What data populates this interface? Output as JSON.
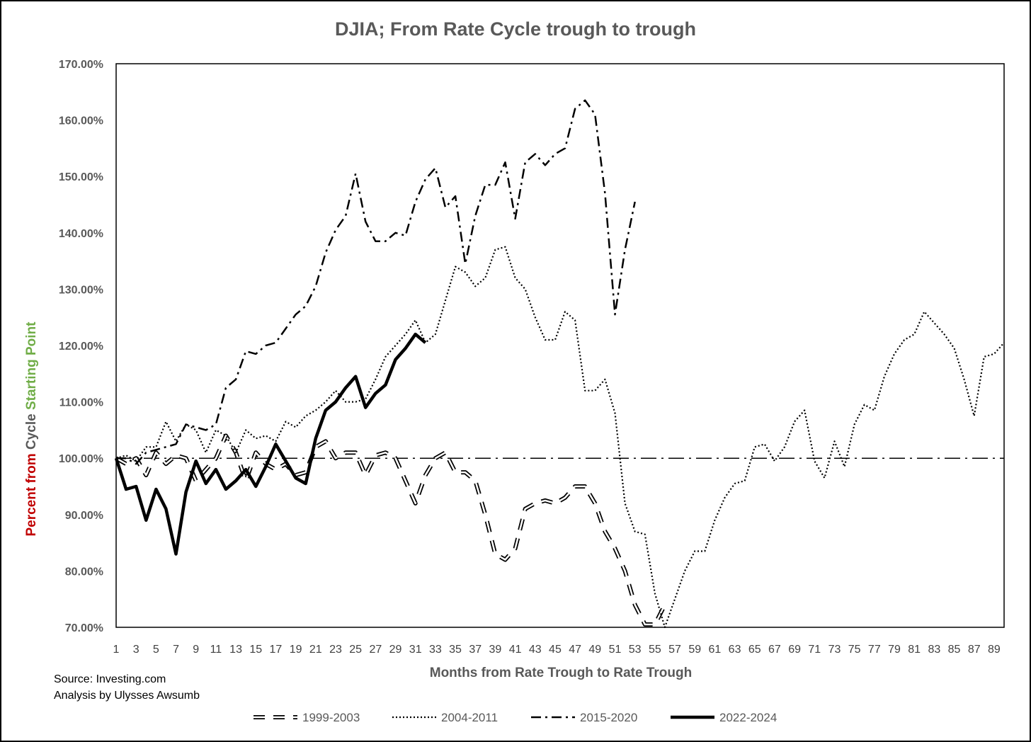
{
  "chart_data": {
    "type": "line",
    "title": "DJIA; From Rate Cycle trough to trough",
    "xlabel": "Months from Rate Trough to Rate Trough",
    "ylabel_parts": [
      {
        "text": "Percent from ",
        "color": "#C00000"
      },
      {
        "text": "Cycle ",
        "color": "#595959"
      },
      {
        "text": "Starting Point",
        "color": "#70AD47"
      }
    ],
    "ylim": [
      70,
      170
    ],
    "yticks": [
      70,
      80,
      90,
      100,
      110,
      120,
      130,
      140,
      150,
      160,
      170
    ],
    "ytick_labels": [
      "70.00%",
      "80.00%",
      "90.00%",
      "100.00%",
      "110.00%",
      "120.00%",
      "130.00%",
      "140.00%",
      "150.00%",
      "160.00%",
      "170.00%"
    ],
    "xlim": [
      1,
      90
    ],
    "xtick_labels": [
      "1",
      "3",
      "5",
      "7",
      "9",
      "11",
      "13",
      "15",
      "17",
      "19",
      "21",
      "23",
      "25",
      "27",
      "29",
      "31",
      "33",
      "35",
      "37",
      "39",
      "41",
      "43",
      "45",
      "47",
      "49",
      "51",
      "53",
      "55",
      "57",
      "59",
      "61",
      "63",
      "65",
      "67",
      "69",
      "71",
      "73",
      "75",
      "77",
      "79",
      "81",
      "83",
      "85",
      "87",
      "89"
    ],
    "reference_line": {
      "y": 100,
      "style": "dash-dot"
    },
    "legend_position": "bottom",
    "series": [
      {
        "name": "1999-2003",
        "style": "outlined-dash",
        "values": [
          100,
          99,
          100,
          97,
          101,
          99,
          100.5,
          100,
          96,
          98,
          100,
          104,
          101,
          96,
          101,
          99,
          98,
          99,
          97,
          97.5,
          102,
          103,
          100,
          101,
          101,
          97,
          100.5,
          101,
          100,
          96,
          92,
          97,
          100,
          101,
          97.5,
          97.5,
          96,
          90,
          83,
          82,
          84,
          91,
          92,
          92.5,
          92,
          93,
          95,
          95,
          92,
          87,
          84,
          80,
          74,
          70.5,
          70.5,
          74
        ]
      },
      {
        "name": "2004-2011",
        "style": "dotted",
        "values": [
          100,
          100.5,
          99.5,
          102,
          102,
          106.5,
          103,
          106,
          105,
          101,
          105,
          104,
          101,
          105,
          103.5,
          104,
          103,
          106.5,
          105.5,
          107.5,
          108.5,
          110,
          112,
          110,
          110,
          110.5,
          114,
          118,
          120,
          122,
          124.5,
          120.5,
          122,
          128,
          134,
          133,
          130.5,
          132,
          137,
          137.5,
          132,
          130,
          125,
          121,
          121,
          126,
          124.5,
          112,
          112,
          114,
          108,
          92,
          87,
          86.5,
          76,
          70,
          75,
          80,
          83.5,
          83.5,
          89,
          93,
          95.5,
          96,
          102,
          102.5,
          99.5,
          102,
          106.5,
          108.5,
          99.5,
          96.5,
          103,
          98.5,
          106,
          109.5,
          108.5,
          114.5,
          118.5,
          121,
          122,
          126,
          124,
          122,
          119.5,
          114,
          107.5,
          118,
          118.5,
          120.5
        ]
      },
      {
        "name": "2015-2020",
        "style": "dash-dot",
        "values": [
          100,
          100,
          99,
          101,
          101.5,
          102,
          102.5,
          106,
          105.5,
          105,
          106,
          112.5,
          114,
          119,
          118.5,
          120,
          120.5,
          123,
          125.5,
          127,
          130.5,
          136.5,
          140.5,
          143,
          150.5,
          142,
          138.5,
          138.5,
          140,
          139.5,
          145.5,
          149.5,
          151.5,
          144.5,
          146.5,
          134.5,
          143,
          148.5,
          148.5,
          152.5,
          142.5,
          152.5,
          154,
          152,
          154,
          155,
          162,
          163.5,
          161,
          147,
          125.5,
          137,
          145.5
        ]
      },
      {
        "name": "2022-2024",
        "style": "solid-thick",
        "values": [
          100,
          94.5,
          95,
          89,
          94.5,
          91,
          83,
          94,
          99.5,
          95.5,
          98,
          94.5,
          96,
          98,
          95,
          98.5,
          102.5,
          99.5,
          96.5,
          95.5,
          103.5,
          108.5,
          110,
          112.5,
          114.5,
          109,
          111.5,
          113,
          117.5,
          119.5,
          122,
          120.5
        ]
      }
    ]
  },
  "footer": {
    "source_line1": "Source: Investing.com",
    "source_line2": "Analysis by Ulysses Awsumb"
  }
}
